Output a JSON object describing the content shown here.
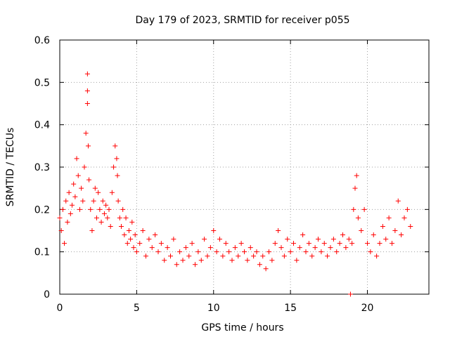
{
  "chart_data": {
    "type": "scatter",
    "title": "Day 179 of 2023, SRMTID for receiver p055",
    "xlabel": "GPS time / hours",
    "ylabel": "SRMTID / TECUs",
    "xlim": [
      0,
      24
    ],
    "ylim": [
      0,
      0.6
    ],
    "xticks": [
      0,
      5,
      10,
      15,
      20
    ],
    "yticks": [
      0,
      0.1,
      0.2,
      0.3,
      0.4,
      0.5,
      0.6
    ],
    "xtick_labels": [
      "0",
      "5",
      "10",
      "15",
      "20"
    ],
    "ytick_labels": [
      "0",
      "0.1",
      "0.2",
      "0.3",
      "0.4",
      "0.5",
      "0.6"
    ],
    "grid": true,
    "marker": "plus",
    "color": "#ff0000",
    "series": [
      {
        "name": "SRMTID",
        "x": [
          0.0,
          0.1,
          0.2,
          0.3,
          0.4,
          0.5,
          0.6,
          0.7,
          0.8,
          0.9,
          1.0,
          1.1,
          1.2,
          1.3,
          1.4,
          1.5,
          1.6,
          1.7,
          1.8,
          1.8,
          1.8,
          1.85,
          1.9,
          2.0,
          2.1,
          2.2,
          2.3,
          2.4,
          2.5,
          2.6,
          2.7,
          2.8,
          2.9,
          3.0,
          3.1,
          3.2,
          3.3,
          3.4,
          3.5,
          3.6,
          3.7,
          3.75,
          3.8,
          3.9,
          4.0,
          4.1,
          4.2,
          4.3,
          4.4,
          4.5,
          4.6,
          4.7,
          4.8,
          4.9,
          5.0,
          5.2,
          5.4,
          5.6,
          5.8,
          6.0,
          6.2,
          6.4,
          6.6,
          6.8,
          7.0,
          7.2,
          7.4,
          7.6,
          7.8,
          8.0,
          8.2,
          8.4,
          8.6,
          8.8,
          9.0,
          9.2,
          9.4,
          9.6,
          9.8,
          10.0,
          10.2,
          10.4,
          10.6,
          10.8,
          11.0,
          11.2,
          11.4,
          11.6,
          11.8,
          12.0,
          12.2,
          12.4,
          12.6,
          12.8,
          13.0,
          13.2,
          13.4,
          13.6,
          13.8,
          14.0,
          14.2,
          14.4,
          14.6,
          14.8,
          15.0,
          15.2,
          15.4,
          15.6,
          15.8,
          16.0,
          16.2,
          16.4,
          16.6,
          16.8,
          17.0,
          17.2,
          17.4,
          17.6,
          17.8,
          18.0,
          18.2,
          18.4,
          18.6,
          18.8,
          18.9,
          19.0,
          19.1,
          19.2,
          19.3,
          19.4,
          19.6,
          19.8,
          20.0,
          20.2,
          20.4,
          20.6,
          20.8,
          21.0,
          21.2,
          21.4,
          21.6,
          21.8,
          22.0,
          22.2,
          22.4,
          22.6,
          22.8
        ],
        "y": [
          0.18,
          0.15,
          0.2,
          0.12,
          0.22,
          0.17,
          0.24,
          0.19,
          0.21,
          0.26,
          0.23,
          0.32,
          0.28,
          0.2,
          0.25,
          0.22,
          0.3,
          0.38,
          0.52,
          0.48,
          0.45,
          0.35,
          0.27,
          0.2,
          0.15,
          0.22,
          0.25,
          0.18,
          0.24,
          0.2,
          0.17,
          0.22,
          0.19,
          0.21,
          0.18,
          0.2,
          0.16,
          0.24,
          0.3,
          0.35,
          0.32,
          0.28,
          0.22,
          0.18,
          0.16,
          0.2,
          0.14,
          0.18,
          0.12,
          0.15,
          0.13,
          0.17,
          0.11,
          0.14,
          0.1,
          0.12,
          0.15,
          0.09,
          0.13,
          0.11,
          0.14,
          0.1,
          0.12,
          0.08,
          0.11,
          0.09,
          0.13,
          0.07,
          0.1,
          0.08,
          0.11,
          0.09,
          0.12,
          0.07,
          0.1,
          0.08,
          0.13,
          0.09,
          0.11,
          0.15,
          0.1,
          0.13,
          0.09,
          0.12,
          0.1,
          0.08,
          0.11,
          0.09,
          0.12,
          0.1,
          0.08,
          0.11,
          0.09,
          0.1,
          0.07,
          0.09,
          0.06,
          0.1,
          0.08,
          0.12,
          0.15,
          0.11,
          0.09,
          0.13,
          0.1,
          0.12,
          0.08,
          0.11,
          0.14,
          0.1,
          0.12,
          0.09,
          0.11,
          0.13,
          0.1,
          0.12,
          0.09,
          0.11,
          0.13,
          0.1,
          0.12,
          0.14,
          0.11,
          0.13,
          0.0,
          0.12,
          0.2,
          0.25,
          0.28,
          0.18,
          0.15,
          0.2,
          0.12,
          0.1,
          0.14,
          0.09,
          0.12,
          0.16,
          0.13,
          0.18,
          0.12,
          0.15,
          0.22,
          0.14,
          0.18,
          0.2,
          0.16
        ]
      }
    ]
  }
}
